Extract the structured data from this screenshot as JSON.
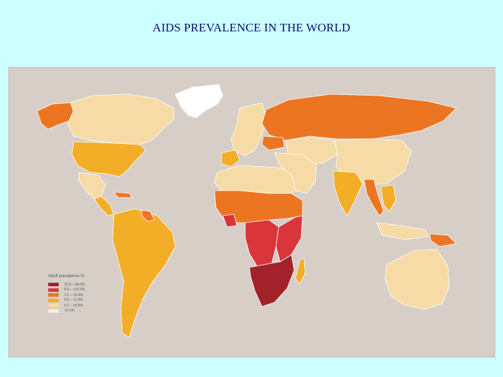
{
  "slide": {
    "title": "AIDS PREVALENCE IN THE WORLD"
  },
  "map": {
    "ocean_color": "#d6cec7",
    "border_color": "#ffffff",
    "legend": {
      "title": "Adult prevalence %",
      "items": [
        {
          "label": "15.0  –  34.0%",
          "color": "#a3212b"
        },
        {
          "label": "5.0  –  <15.0%",
          "color": "#d9353a"
        },
        {
          "label": "1.0  –  <5.0%",
          "color": "#ec7522"
        },
        {
          "label": "0.5  –  <1.0%",
          "color": "#f3ae27"
        },
        {
          "label": "0.1  –  <0.5%",
          "color": "#f7dba6"
        },
        {
          "label": "<0.1%",
          "color": "#fbf0dc"
        }
      ]
    },
    "regions": [
      {
        "name": "Greenland",
        "category": "no-data"
      },
      {
        "name": "Alaska",
        "category": "1.0-5.0"
      },
      {
        "name": "Canada",
        "category": "0.1-0.5"
      },
      {
        "name": "United States",
        "category": "0.5-1.0"
      },
      {
        "name": "Mexico",
        "category": "0.1-0.5"
      },
      {
        "name": "Central America",
        "category": "0.5-1.0"
      },
      {
        "name": "Caribbean",
        "category": "1.0-5.0"
      },
      {
        "name": "South America",
        "category": "0.5-1.0"
      },
      {
        "name": "Guyana/Suriname",
        "category": "1.0-5.0"
      },
      {
        "name": "Western Europe",
        "category": "0.1-0.5"
      },
      {
        "name": "Iberia",
        "category": "0.5-1.0"
      },
      {
        "name": "Russia",
        "category": "1.0-5.0"
      },
      {
        "name": "Ukraine",
        "category": "1.0-5.0"
      },
      {
        "name": "Central Asia",
        "category": "0.1-0.5"
      },
      {
        "name": "China",
        "category": "0.1-0.5"
      },
      {
        "name": "India",
        "category": "0.5-1.0"
      },
      {
        "name": "Southeast Asia",
        "category": "0.5-1.0"
      },
      {
        "name": "Myanmar/Thailand",
        "category": "1.0-5.0"
      },
      {
        "name": "Indonesia",
        "category": "0.1-0.5"
      },
      {
        "name": "Papua New Guinea",
        "category": "1.0-5.0"
      },
      {
        "name": "Australia",
        "category": "0.1-0.5"
      },
      {
        "name": "North Africa",
        "category": "0.1-0.5"
      },
      {
        "name": "Middle East",
        "category": "0.1-0.5"
      },
      {
        "name": "West Africa",
        "category": "1.0-5.0"
      },
      {
        "name": "Cote d'Ivoire",
        "category": "5.0-15.0"
      },
      {
        "name": "Central Africa",
        "category": "5.0-15.0"
      },
      {
        "name": "East Africa",
        "category": "5.0-15.0"
      },
      {
        "name": "Southern Africa",
        "category": "15.0-34.0"
      },
      {
        "name": "Madagascar",
        "category": "0.5-1.0"
      }
    ]
  }
}
